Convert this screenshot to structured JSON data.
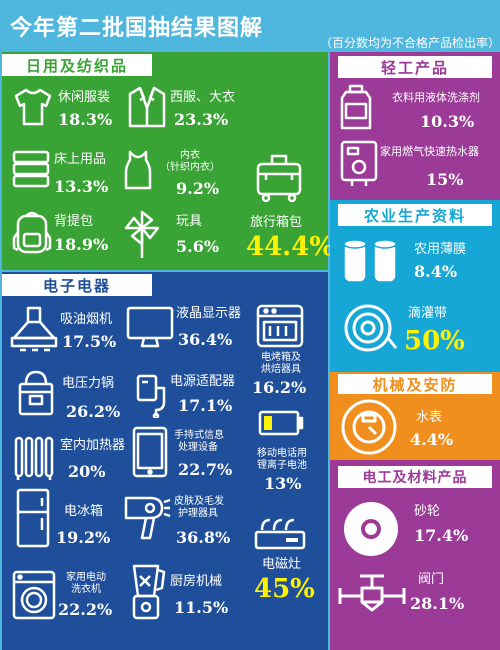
{
  "title": "今年第二批国抽结果图解",
  "note": "（百分数均为不合格产品检出率）",
  "colors": {
    "green": "#3aa335",
    "blue": "#1f4f9a",
    "purple": "#9b3a97",
    "cyan": "#17a7d6",
    "orange": "#f08f1e",
    "highlight": "#fff200"
  },
  "daily": {
    "header": "日用及纺织品",
    "items": [
      {
        "label": "休闲服装",
        "value": "18.3%",
        "icon": "t-shirt-icon"
      },
      {
        "label": "西服、大衣",
        "value": "23.3%",
        "icon": "suit-jacket-icon"
      },
      {
        "label": "床上用品",
        "value": "13.3%",
        "icon": "folded-bedding-icon"
      },
      {
        "label": "内衣",
        "label2": "（针织内衣）",
        "value": "9.2%",
        "icon": "tank-top-icon"
      },
      {
        "label": "背提包",
        "value": "18.9%",
        "icon": "backpack-icon"
      },
      {
        "label": "玩具",
        "value": "5.6%",
        "icon": "pinwheel-icon"
      },
      {
        "label": "旅行箱包",
        "value": "44.4%",
        "icon": "suitcase-icon"
      }
    ]
  },
  "light": {
    "header": "轻工产品",
    "items": [
      {
        "label": "衣料用液体洗涤剂",
        "value": "10.3%",
        "icon": "detergent-bottle-icon"
      },
      {
        "label": "家用燃气快速热水器",
        "value": "15%",
        "icon": "water-heater-icon"
      }
    ]
  },
  "agri": {
    "header": "农业生产资料",
    "items": [
      {
        "label": "农用薄膜",
        "value": "8.4%",
        "icon": "film-rolls-icon"
      },
      {
        "label": "滴灌带",
        "value": "50%",
        "icon": "hose-reel-icon"
      }
    ]
  },
  "electronics": {
    "header": "电子电器",
    "items": [
      {
        "label": "吸油烟机",
        "value": "17.5%",
        "icon": "range-hood-icon"
      },
      {
        "label": "液晶显示器",
        "value": "36.4%",
        "icon": "monitor-icon"
      },
      {
        "label": "电烤箱及",
        "label2": "烘焙器具",
        "value": "16.2%",
        "icon": "oven-icon"
      },
      {
        "label": "电压力锅",
        "value": "26.2%",
        "icon": "pressure-cooker-icon"
      },
      {
        "label": "电源适配器",
        "value": "17.1%",
        "icon": "power-adapter-icon"
      },
      {
        "label": "室内加热器",
        "value": "20%",
        "icon": "radiator-heater-icon"
      },
      {
        "label": "手持式信息",
        "label2": "处理设备",
        "value": "22.7%",
        "icon": "tablet-icon"
      },
      {
        "label": "移动电话用",
        "label2": "锂离子电池",
        "value": "13%",
        "icon": "battery-icon"
      },
      {
        "label": "电冰箱",
        "value": "19.2%",
        "icon": "refrigerator-icon"
      },
      {
        "label": "皮肤及毛发",
        "label2": "护理器具",
        "value": "36.8%",
        "icon": "hair-dryer-icon"
      },
      {
        "label": "电磁灶",
        "value": "45%",
        "icon": "induction-cooker-icon"
      },
      {
        "label": "家用电动",
        "label2": "洗衣机",
        "value": "22.2%",
        "icon": "washing-machine-icon"
      },
      {
        "label": "厨房机械",
        "value": "11.5%",
        "icon": "blender-icon"
      }
    ]
  },
  "mech": {
    "header": "机械及安防",
    "items": [
      {
        "label": "水表",
        "value": "4.4%",
        "icon": "water-meter-icon"
      }
    ]
  },
  "elec_mat": {
    "header": "电工及材料产品",
    "items": [
      {
        "label": "砂轮",
        "value": "17.4%",
        "icon": "grinding-wheel-icon"
      },
      {
        "label": "阀门",
        "value": "28.1%",
        "icon": "valve-icon"
      }
    ]
  }
}
